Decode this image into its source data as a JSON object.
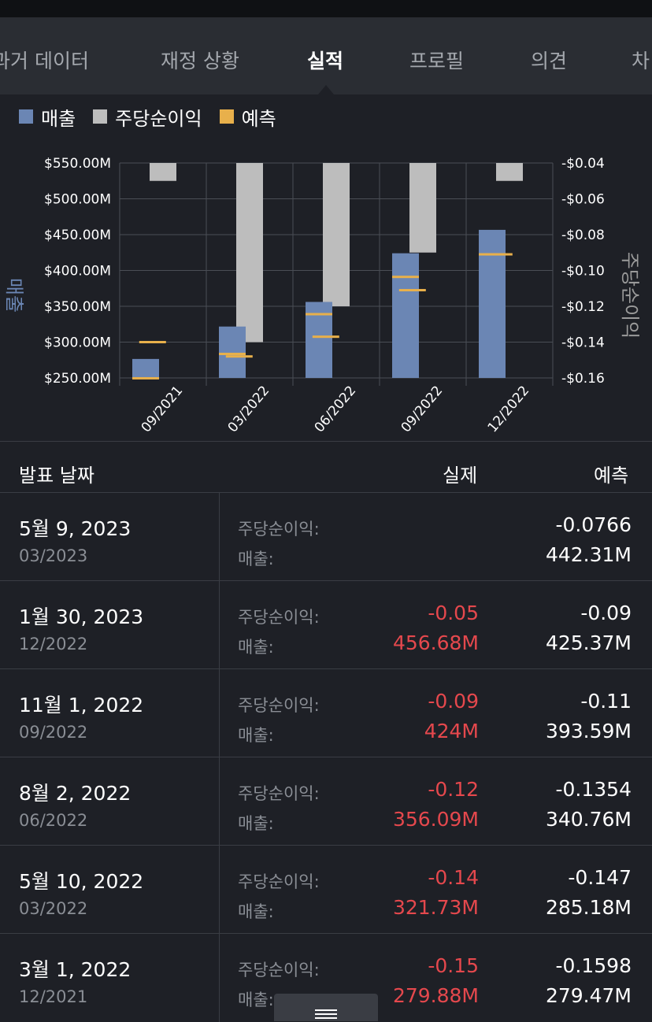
{
  "tabs": [
    {
      "label": "과거 데이터",
      "active": false
    },
    {
      "label": "재정 상황",
      "active": false
    },
    {
      "label": "실적",
      "active": true
    },
    {
      "label": "프로필",
      "active": false
    },
    {
      "label": "의견",
      "active": false
    },
    {
      "label": "차",
      "active": false
    }
  ],
  "legend": [
    {
      "label": "매출",
      "color": "#6b86b4"
    },
    {
      "label": "주당순이익",
      "color": "#bdbdbd"
    },
    {
      "label": "예측",
      "color": "#e8b04b"
    }
  ],
  "chart_data": {
    "type": "bar",
    "categories": [
      "09/2021",
      "03/2022",
      "06/2022",
      "09/2022",
      "12/2022"
    ],
    "left_axis": {
      "label": "매출",
      "ticks": [
        "$550.00M",
        "$500.00M",
        "$450.00M",
        "$400.00M",
        "$350.00M",
        "$300.00M",
        "$250.00M"
      ],
      "range": [
        250,
        550
      ]
    },
    "right_axis": {
      "label": "주당순이익",
      "ticks": [
        "-$0.04",
        "-$0.06",
        "-$0.08",
        "-$0.10",
        "-$0.12",
        "-$0.14",
        "-$0.16"
      ],
      "range": [
        -0.16,
        -0.04
      ]
    },
    "revenue_bars": [
      {
        "slot": 0,
        "value": 276.5
      },
      {
        "slot": 1,
        "value": 321.73
      },
      {
        "slot": 2,
        "value": 356.09
      },
      {
        "slot": 3,
        "value": 424
      },
      {
        "slot": 4,
        "value": 456.68
      }
    ],
    "revenue_forecast": [
      {
        "slot": 0,
        "value": 249.5
      },
      {
        "slot": 1,
        "value": 283.5
      },
      {
        "slot": 2,
        "value": 339
      },
      {
        "slot": 3,
        "value": 391
      },
      {
        "slot": 4,
        "value": 422.5
      }
    ],
    "eps_bars": [
      {
        "slot": 0.5,
        "value": -0.05
      },
      {
        "slot": 1.5,
        "value": -0.14
      },
      {
        "slot": 2.5,
        "value": -0.12
      },
      {
        "slot": 3.5,
        "value": -0.09
      },
      {
        "slot": 4.5,
        "value": -0.05
      }
    ],
    "eps_forecast": [
      {
        "slot": 0.5,
        "value": -0.14
      },
      {
        "slot": 1.5,
        "value": -0.148
      },
      {
        "slot": 2.5,
        "value": -0.137
      },
      {
        "slot": 3.5,
        "value": -0.111
      },
      {
        "slot": 4.5,
        "value": -0.091
      }
    ],
    "colors": {
      "revenue": "#6b86b4",
      "eps": "#bdbdbd",
      "forecast": "#e8b04b",
      "grid": "#4a4e55",
      "axis_text": "#ffffff",
      "axis_label": "#6b86b4",
      "eps_label": "#9a9a9a"
    }
  },
  "table": {
    "headers": {
      "date": "발표 날짜",
      "actual": "실제",
      "forecast": "예측"
    },
    "rows": [
      {
        "date": "5월 9, 2023",
        "period": "03/2023",
        "eps_label": "주당순이익:",
        "rev_label": "매출:",
        "eps_actual": "",
        "rev_actual": "",
        "eps_forecast": "-0.0766",
        "rev_forecast": "442.31M"
      },
      {
        "date": "1월 30, 2023",
        "period": "12/2022",
        "eps_label": "주당순이익:",
        "rev_label": "매출:",
        "eps_actual": "-0.05",
        "rev_actual": "456.68M",
        "eps_forecast": "-0.09",
        "rev_forecast": "425.37M"
      },
      {
        "date": "11월 1, 2022",
        "period": "09/2022",
        "eps_label": "주당순이익:",
        "rev_label": "매출:",
        "eps_actual": "-0.09",
        "rev_actual": "424M",
        "eps_forecast": "-0.11",
        "rev_forecast": "393.59M"
      },
      {
        "date": "8월 2, 2022",
        "period": "06/2022",
        "eps_label": "주당순이익:",
        "rev_label": "매출:",
        "eps_actual": "-0.12",
        "rev_actual": "356.09M",
        "eps_forecast": "-0.1354",
        "rev_forecast": "340.76M"
      },
      {
        "date": "5월 10, 2022",
        "period": "03/2022",
        "eps_label": "주당순이익:",
        "rev_label": "매출:",
        "eps_actual": "-0.14",
        "rev_actual": "321.73M",
        "eps_forecast": "-0.147",
        "rev_forecast": "285.18M"
      },
      {
        "date": "3월 1, 2022",
        "period": "12/2021",
        "eps_label": "주당순이익:",
        "rev_label": "매출:",
        "eps_actual": "-0.15",
        "rev_actual": "279.88M",
        "eps_forecast": "-0.1598",
        "rev_forecast": "279.47M"
      }
    ]
  },
  "bottom_handle": {
    "icon": "menu-icon"
  }
}
